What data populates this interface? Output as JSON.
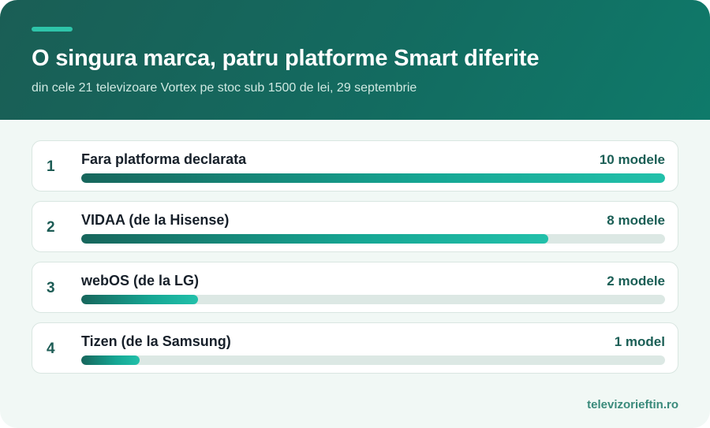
{
  "header": {
    "title": "O singura marca, patru platforme Smart diferite",
    "subtitle": "din cele 21 televizoare Vortex pe stoc sub 1500 de lei, 29 septembrie"
  },
  "footer": {
    "source": "televizorieftin.ro"
  },
  "colors": {
    "header_bg": "#136b60",
    "accent": "#2ec4a9",
    "bar_fill": "#16a794",
    "bar_track": "#dce8e4"
  },
  "chart_data": {
    "type": "bar",
    "orientation": "horizontal",
    "max": 10,
    "rows": [
      {
        "rank": "1",
        "label": "Fara platforma declarata",
        "value": 10,
        "count_label": "10 modele"
      },
      {
        "rank": "2",
        "label": "VIDAA (de la Hisense)",
        "value": 8,
        "count_label": "8 modele"
      },
      {
        "rank": "3",
        "label": "webOS (de la LG)",
        "value": 2,
        "count_label": "2 modele"
      },
      {
        "rank": "4",
        "label": "Tizen (de la Samsung)",
        "value": 1,
        "count_label": "1 model"
      }
    ]
  }
}
